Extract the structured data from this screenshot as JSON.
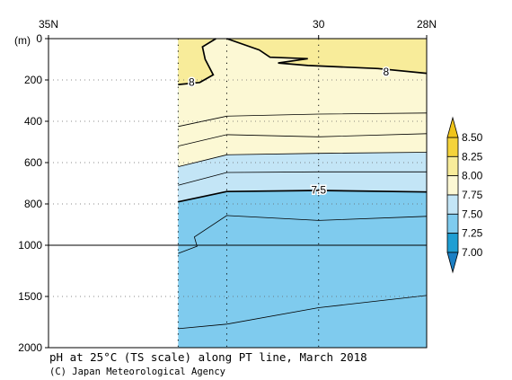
{
  "chart_data": {
    "type": "heatmap",
    "title": "pH at 25°C (TS scale) along PT line, March 2018",
    "credit": "(C) Japan Meteorological Agency",
    "y_unit_label": "(m)",
    "x_ticks": [
      {
        "value": 35,
        "label": "35N"
      },
      {
        "value": 30,
        "label": "30"
      },
      {
        "value": 28,
        "label": "28N"
      }
    ],
    "y_ticks": [
      {
        "value": 0,
        "label": "0"
      },
      {
        "value": 200,
        "label": "200"
      },
      {
        "value": 400,
        "label": "400"
      },
      {
        "value": 600,
        "label": "600"
      },
      {
        "value": 800,
        "label": "800"
      },
      {
        "value": 1000,
        "label": "1000"
      },
      {
        "value": 1500,
        "label": "1500"
      },
      {
        "value": 2000,
        "label": "2000"
      }
    ],
    "y_axis": {
      "scale": "piecewise linear, break at 1000 m",
      "range": [
        0,
        2000
      ]
    },
    "x_axis": {
      "range": [
        35,
        28
      ],
      "data_start_lat": 32.6
    },
    "station_latitudes": [
      32.6,
      31.7,
      30.0
    ],
    "colorbar": {
      "levels": [
        "8.50",
        "8.25",
        "8.00",
        "7.75",
        "7.50",
        "7.25",
        "7.00"
      ],
      "bands": [
        {
          "from": 8.25,
          "to": 8.5,
          "color": "#f5d33b"
        },
        {
          "from": 8.0,
          "to": 8.25,
          "color": "#f8ec9a"
        },
        {
          "from": 7.75,
          "to": 8.0,
          "color": "#fcf8d4"
        },
        {
          "from": 7.5,
          "to": 7.75,
          "color": "#c3e5f6"
        },
        {
          "from": 7.25,
          "to": 7.5,
          "color": "#7fcbee"
        },
        {
          "from": 7.0,
          "to": 7.25,
          "color": "#1f9ed3"
        }
      ],
      "extend_top_color": "#f0c419",
      "extend_bottom_color": "#1b7fc4"
    },
    "contour_labels": [
      {
        "text": "8",
        "lat": 32.35,
        "depth": 210
      },
      {
        "text": "8",
        "lat": 28.75,
        "depth": 160
      },
      {
        "text": "7.5",
        "lat": 30.0,
        "depth": 732
      }
    ],
    "regions": [
      {
        "name": "ph-above-8.00",
        "color": "#f8ec9a",
        "range": "8.00-8.25"
      },
      {
        "name": "ph-7.75-8.00",
        "color": "#fcf8d4",
        "range": "7.75-8.00"
      },
      {
        "name": "ph-7.50-7.75",
        "color": "#c3e5f6",
        "range": "7.50-7.75"
      },
      {
        "name": "ph-7.25-7.50",
        "color": "#7fcbee",
        "range": "7.25-7.50"
      }
    ],
    "contours": [
      {
        "name": "contour-8-west",
        "value": 8.0,
        "bold": true,
        "points": [
          [
            32.6,
            222
          ],
          [
            32.2,
            212
          ],
          [
            31.95,
            175
          ],
          [
            32.1,
            100
          ],
          [
            32.15,
            40
          ],
          [
            31.9,
            0
          ]
        ]
      },
      {
        "name": "contour-8-east",
        "value": 8.0,
        "bold": true,
        "points": [
          [
            31.7,
            0
          ],
          [
            31.1,
            55
          ],
          [
            30.9,
            90
          ],
          [
            30.2,
            97
          ],
          [
            30.75,
            118
          ],
          [
            30.2,
            130
          ],
          [
            28.9,
            145
          ],
          [
            28.0,
            168
          ]
        ]
      },
      {
        "name": "contour-7.9",
        "value": 7.9,
        "bold": false,
        "points": [
          [
            32.6,
            425
          ],
          [
            31.7,
            375
          ],
          [
            30.0,
            365
          ],
          [
            28.0,
            360
          ]
        ]
      },
      {
        "name": "contour-7.8",
        "value": 7.8,
        "bold": false,
        "points": [
          [
            32.6,
            520
          ],
          [
            31.7,
            465
          ],
          [
            30.0,
            475
          ],
          [
            28.0,
            460
          ]
        ]
      },
      {
        "name": "contour-7.7",
        "value": 7.7,
        "bold": false,
        "points": [
          [
            32.6,
            620
          ],
          [
            31.7,
            562
          ],
          [
            30.0,
            555
          ],
          [
            28.0,
            550
          ]
        ]
      },
      {
        "name": "contour-7.6",
        "value": 7.6,
        "bold": false,
        "points": [
          [
            32.6,
            710
          ],
          [
            31.7,
            648
          ],
          [
            30.0,
            645
          ],
          [
            28.0,
            645
          ]
        ]
      },
      {
        "name": "contour-7.5",
        "value": 7.5,
        "bold": true,
        "points": [
          [
            32.6,
            790
          ],
          [
            31.7,
            740
          ],
          [
            30.0,
            735
          ],
          [
            28.0,
            742
          ]
        ]
      },
      {
        "name": "contour-7.4",
        "value": 7.4,
        "bold": false,
        "points": [
          [
            32.6,
            1080
          ],
          [
            32.25,
            1010
          ],
          [
            32.3,
            960
          ],
          [
            31.7,
            856
          ],
          [
            30.0,
            880
          ],
          [
            28.0,
            860
          ]
        ]
      },
      {
        "name": "contour-7.3",
        "value": 7.3,
        "bold": false,
        "points": [
          [
            32.6,
            1815
          ],
          [
            31.7,
            1770
          ],
          [
            30.0,
            1610
          ],
          [
            28.0,
            1490
          ]
        ]
      }
    ]
  }
}
